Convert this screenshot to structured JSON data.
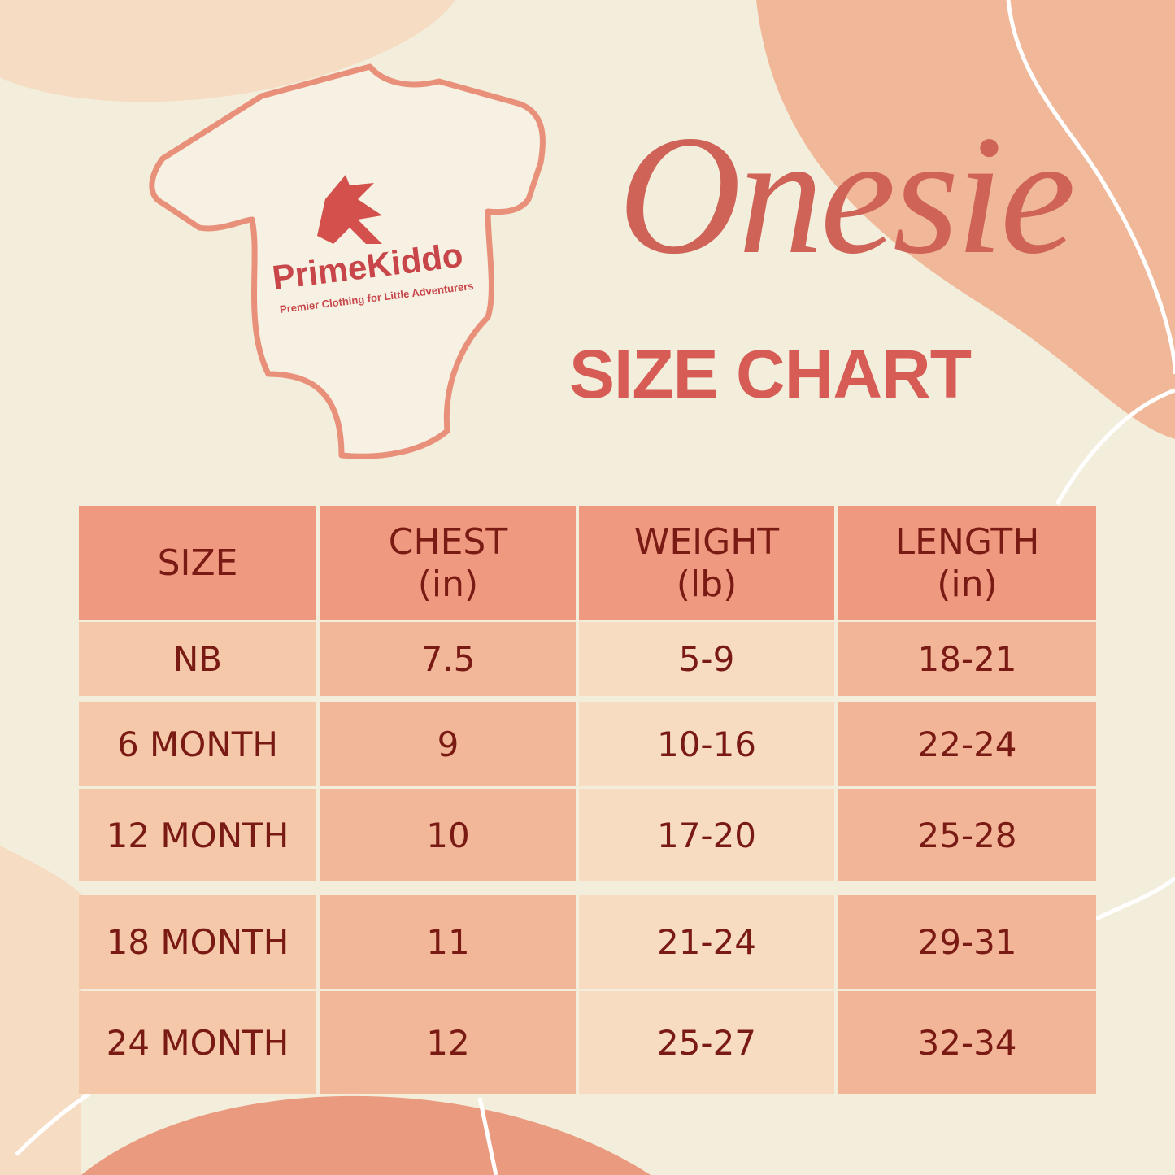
{
  "logo": {
    "name": "PrimeKiddo",
    "tagline": "Premier Clothing for Little Adventurers"
  },
  "title": {
    "script": "Onesie",
    "main": "SIZE CHART"
  },
  "table": {
    "header": [
      {
        "label": "SIZE"
      },
      {
        "label": "CHEST",
        "unit": "(in)"
      },
      {
        "label": "WEIGHT",
        "unit": "(lb)"
      },
      {
        "label": "LENGTH",
        "unit": "(in)"
      }
    ],
    "rows": [
      [
        "NB",
        "7.5",
        "5-9",
        "18-21"
      ],
      [
        "6 MONTH",
        "9",
        "10-16",
        "22-24"
      ],
      [
        "12 MONTH",
        "10",
        "17-20",
        "25-28"
      ],
      [
        "18 MONTH",
        "11",
        "21-24",
        "29-31"
      ],
      [
        "24 MONTH",
        "12",
        "25-27",
        "32-34"
      ]
    ]
  }
}
